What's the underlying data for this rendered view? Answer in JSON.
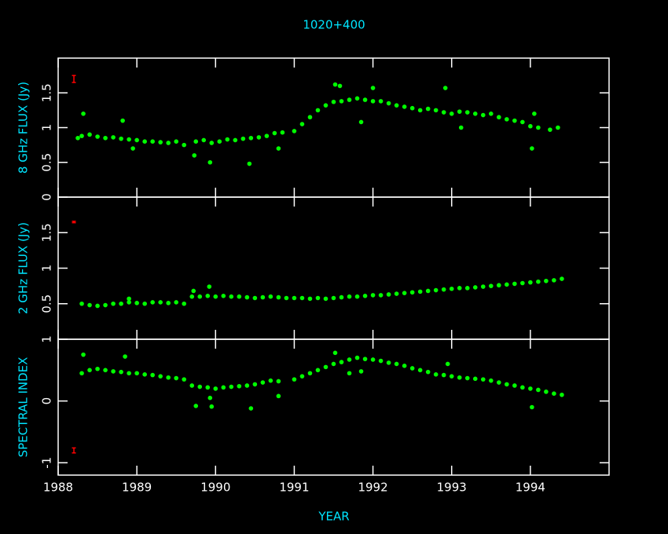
{
  "chart_data": [
    {
      "type": "scatter",
      "title": "1020+400",
      "ylabel": "8 GHz FLUX (Jy)",
      "color": "#00ff00",
      "xlim": [
        1988,
        1995
      ],
      "xticks": [
        1988,
        1989,
        1990,
        1991,
        1992,
        1993,
        1994
      ],
      "ylim": [
        0,
        2
      ],
      "yticks": [
        0,
        0.5,
        1,
        1.5
      ],
      "x": [
        1988.25,
        1988.3,
        1988.4,
        1988.5,
        1988.6,
        1988.7,
        1988.8,
        1988.9,
        1989.0,
        1989.1,
        1989.2,
        1989.3,
        1989.4,
        1989.5,
        1989.6,
        1989.75,
        1989.85,
        1989.95,
        1990.05,
        1990.15,
        1990.25,
        1990.35,
        1990.45,
        1990.55,
        1990.65,
        1990.75,
        1990.85,
        1991.0,
        1991.1,
        1991.2,
        1991.3,
        1991.4,
        1991.5,
        1991.6,
        1991.7,
        1991.8,
        1991.9,
        1992.0,
        1992.1,
        1992.2,
        1992.3,
        1992.4,
        1992.5,
        1992.6,
        1992.7,
        1992.8,
        1992.9,
        1993.0,
        1993.1,
        1993.2,
        1993.3,
        1993.4,
        1993.5,
        1993.6,
        1993.7,
        1993.8,
        1993.9,
        1994.0,
        1994.1,
        1994.25,
        1994.35,
        1988.32,
        1988.82,
        1988.95,
        1989.73,
        1989.93,
        1990.43,
        1990.8,
        1991.52,
        1991.58,
        1991.85,
        1992.0,
        1992.92,
        1993.12,
        1994.02,
        1994.05
      ],
      "values": [
        0.85,
        0.88,
        0.9,
        0.87,
        0.85,
        0.86,
        0.84,
        0.83,
        0.82,
        0.8,
        0.8,
        0.79,
        0.78,
        0.8,
        0.75,
        0.8,
        0.82,
        0.78,
        0.8,
        0.83,
        0.82,
        0.84,
        0.85,
        0.86,
        0.88,
        0.92,
        0.93,
        0.95,
        1.05,
        1.15,
        1.25,
        1.32,
        1.37,
        1.38,
        1.4,
        1.42,
        1.4,
        1.38,
        1.38,
        1.35,
        1.32,
        1.3,
        1.28,
        1.25,
        1.27,
        1.25,
        1.22,
        1.2,
        1.23,
        1.22,
        1.2,
        1.18,
        1.2,
        1.15,
        1.12,
        1.1,
        1.08,
        1.02,
        1.0,
        0.97,
        1.0,
        1.2,
        1.1,
        0.7,
        0.6,
        0.5,
        0.48,
        0.7,
        1.62,
        1.6,
        1.08,
        1.57,
        1.57,
        1.0,
        0.7,
        1.2
      ],
      "error_marker": {
        "x": 1988.2,
        "y": 1.7,
        "err": 0.05,
        "color": "#ff0000"
      }
    },
    {
      "type": "scatter",
      "ylabel": "2 GHz FLUX (Jy)",
      "color": "#00ff00",
      "xlim": [
        1988,
        1995
      ],
      "xticks": [
        1988,
        1989,
        1990,
        1991,
        1992,
        1993,
        1994
      ],
      "ylim": [
        0,
        2
      ],
      "yticks": [
        0.5,
        1,
        1.5
      ],
      "x": [
        1988.3,
        1988.4,
        1988.5,
        1988.6,
        1988.7,
        1988.8,
        1988.9,
        1989.0,
        1989.1,
        1989.2,
        1989.3,
        1989.4,
        1989.5,
        1989.6,
        1989.7,
        1989.8,
        1989.9,
        1990.0,
        1990.1,
        1990.2,
        1990.3,
        1990.4,
        1990.5,
        1990.6,
        1990.7,
        1990.8,
        1990.9,
        1991.0,
        1991.1,
        1991.2,
        1991.3,
        1991.4,
        1991.5,
        1991.6,
        1991.7,
        1991.8,
        1991.9,
        1992.0,
        1992.1,
        1992.2,
        1992.3,
        1992.4,
        1992.5,
        1992.6,
        1992.7,
        1992.8,
        1992.9,
        1993.0,
        1993.1,
        1993.2,
        1993.3,
        1993.4,
        1993.5,
        1993.6,
        1993.7,
        1993.8,
        1993.9,
        1994.0,
        1994.1,
        1994.2,
        1994.3,
        1994.4,
        1989.72,
        1989.92,
        1988.9
      ],
      "values": [
        0.5,
        0.48,
        0.47,
        0.48,
        0.5,
        0.5,
        0.52,
        0.51,
        0.5,
        0.52,
        0.52,
        0.51,
        0.52,
        0.5,
        0.6,
        0.6,
        0.61,
        0.6,
        0.61,
        0.6,
        0.6,
        0.59,
        0.58,
        0.59,
        0.6,
        0.59,
        0.58,
        0.58,
        0.58,
        0.57,
        0.58,
        0.57,
        0.58,
        0.59,
        0.6,
        0.6,
        0.61,
        0.62,
        0.62,
        0.63,
        0.64,
        0.65,
        0.66,
        0.67,
        0.68,
        0.69,
        0.7,
        0.71,
        0.72,
        0.72,
        0.73,
        0.74,
        0.75,
        0.76,
        0.77,
        0.78,
        0.79,
        0.8,
        0.81,
        0.82,
        0.83,
        0.85,
        0.68,
        0.74,
        0.57
      ],
      "error_marker": {
        "x": 1988.2,
        "y": 1.65,
        "err": 0.01,
        "color": "#ff0000"
      }
    },
    {
      "type": "scatter",
      "ylabel": "SPECTRAL INDEX",
      "xlabel": "YEAR",
      "color": "#00ff00",
      "xlim": [
        1988,
        1995
      ],
      "xticks": [
        1988,
        1989,
        1990,
        1991,
        1992,
        1993,
        1994
      ],
      "ylim": [
        -1.2,
        1
      ],
      "yticks": [
        -1,
        0,
        1
      ],
      "x": [
        1988.3,
        1988.4,
        1988.5,
        1988.6,
        1988.7,
        1988.8,
        1988.9,
        1989.0,
        1989.1,
        1989.2,
        1989.3,
        1989.4,
        1989.5,
        1989.6,
        1989.7,
        1989.8,
        1989.9,
        1990.0,
        1990.1,
        1990.2,
        1990.3,
        1990.4,
        1990.5,
        1990.6,
        1990.7,
        1990.8,
        1991.0,
        1991.1,
        1991.2,
        1991.3,
        1991.4,
        1991.5,
        1991.6,
        1991.7,
        1991.8,
        1991.9,
        1992.0,
        1992.1,
        1992.2,
        1992.3,
        1992.4,
        1992.5,
        1992.6,
        1992.7,
        1992.8,
        1992.9,
        1993.0,
        1993.1,
        1993.2,
        1993.3,
        1993.4,
        1993.5,
        1993.6,
        1993.7,
        1993.8,
        1993.9,
        1994.0,
        1994.1,
        1994.2,
        1994.3,
        1994.4,
        1988.32,
        1988.85,
        1989.75,
        1989.95,
        1989.93,
        1990.45,
        1990.8,
        1991.52,
        1991.7,
        1991.85,
        1992.95,
        1994.02
      ],
      "values": [
        0.45,
        0.5,
        0.52,
        0.5,
        0.48,
        0.47,
        0.45,
        0.45,
        0.43,
        0.42,
        0.4,
        0.38,
        0.37,
        0.35,
        0.25,
        0.23,
        0.22,
        0.2,
        0.22,
        0.23,
        0.24,
        0.25,
        0.27,
        0.3,
        0.33,
        0.32,
        0.35,
        0.4,
        0.45,
        0.5,
        0.55,
        0.6,
        0.63,
        0.67,
        0.7,
        0.68,
        0.67,
        0.65,
        0.62,
        0.6,
        0.57,
        0.53,
        0.5,
        0.47,
        0.43,
        0.42,
        0.4,
        0.38,
        0.37,
        0.36,
        0.35,
        0.33,
        0.3,
        0.27,
        0.25,
        0.22,
        0.2,
        0.18,
        0.15,
        0.12,
        0.1,
        0.75,
        0.72,
        -0.08,
        -0.09,
        0.05,
        -0.12,
        0.08,
        0.78,
        0.45,
        0.48,
        0.6,
        -0.1
      ],
      "error_marker": {
        "x": 1988.2,
        "y": -0.8,
        "err": 0.04,
        "color": "#ff0000"
      }
    }
  ]
}
